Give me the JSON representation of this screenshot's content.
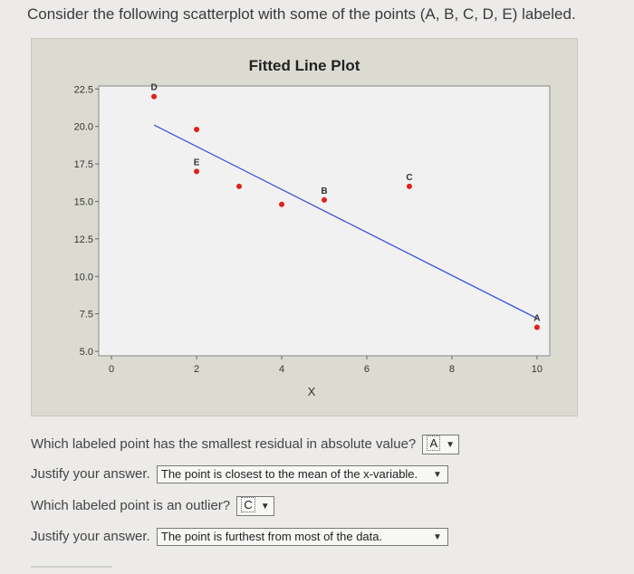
{
  "header": {
    "title": "Consider the following scatterplot with some of the points (A, B, C, D, E) labeled."
  },
  "chart_data": {
    "type": "scatter",
    "title": "Fitted Line Plot",
    "xlabel": "X",
    "ylabel": "",
    "xlim": [
      -0.3,
      10.3
    ],
    "ylim": [
      4.7,
      22.7
    ],
    "x_ticks": [
      0,
      2,
      4,
      6,
      8,
      10
    ],
    "y_ticks": [
      5.0,
      7.5,
      10.0,
      12.5,
      15.0,
      17.5,
      20.0,
      22.5
    ],
    "x_tick_labels": [
      "0",
      "2",
      "4",
      "6",
      "8",
      "10"
    ],
    "y_tick_labels": [
      "5.0",
      "7.5",
      "10.0",
      "12.5",
      "15.0",
      "17.5",
      "20.0",
      "22.5"
    ],
    "points": [
      {
        "x": 1,
        "y": 22.0,
        "label": "D"
      },
      {
        "x": 2,
        "y": 19.8,
        "label": ""
      },
      {
        "x": 2,
        "y": 17.0,
        "label": "E"
      },
      {
        "x": 3,
        "y": 16.0,
        "label": ""
      },
      {
        "x": 4,
        "y": 14.8,
        "label": ""
      },
      {
        "x": 5,
        "y": 15.1,
        "label": "B"
      },
      {
        "x": 7,
        "y": 16.0,
        "label": "C"
      },
      {
        "x": 10,
        "y": 6.6,
        "label": "A"
      }
    ],
    "fitted_line": {
      "x": [
        1,
        10
      ],
      "y": [
        20.1,
        7.2
      ]
    },
    "point_color": "#e0201a",
    "line_color": "#3b55d6",
    "grid": false
  },
  "questions": {
    "q1_text": "Which labeled point has the smallest residual in absolute value?",
    "q1_value": "A",
    "q2_text": "Justify your answer.",
    "q2_value": "The point is closest to the mean of the x-variable.",
    "q3_text": "Which labeled point is an outlier?",
    "q3_value": "C",
    "q4_text": "Justify your answer.",
    "q4_value": "The point is furthest from most of the data.",
    "dropdown_icon": "chevron-down-icon"
  }
}
